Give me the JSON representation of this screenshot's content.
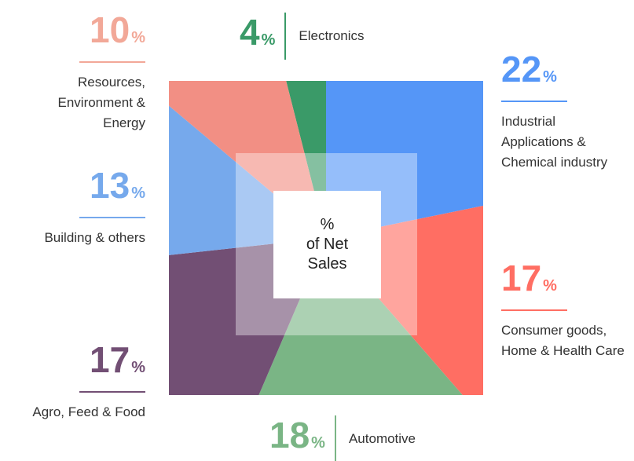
{
  "chart_data": {
    "type": "pie",
    "categories": [
      "Electronics",
      "Industrial Applications & Chemical industry",
      "Consumer goods, Home & Health Care",
      "Automotive",
      "Agro, Feed & Food",
      "Building & others",
      "Resources, Environment & Energy"
    ],
    "values": [
      4,
      22,
      17,
      18,
      17,
      13,
      10
    ],
    "unit": "%",
    "colors": [
      "#3a9a68",
      "#5596f7",
      "#ff6e63",
      "#7ab585",
      "#724f74",
      "#76a9ec",
      "#f28f84"
    ],
    "label_colors": [
      "#3a9a68",
      "#5596f7",
      "#ff6e63",
      "#7ab585",
      "#724f74",
      "#76a9ec",
      "#f2a898"
    ],
    "center_label": [
      "%",
      "of Net",
      "Sales"
    ]
  }
}
